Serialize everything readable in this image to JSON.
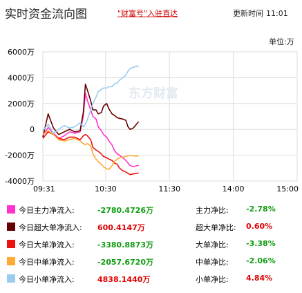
{
  "header": {
    "title": "实时资金流向图",
    "promo": "\"财富号\"入驻直达",
    "update_label": "更新时间",
    "update_time": "11:01"
  },
  "unit_label": "单位:万",
  "watermark": "东方财富",
  "chart_data": {
    "type": "line",
    "title": "实时资金流向图",
    "y_tick_labels": [
      "6000万",
      "4000万",
      "2000万",
      "0",
      "-2000万",
      "-4000万"
    ],
    "y_ticks": [
      6000,
      4000,
      2000,
      0,
      -2000,
      -4000
    ],
    "ylim": [
      -4000,
      6000
    ],
    "x_tick_labels": [
      "09:31",
      "10:30",
      "11:30",
      "14:00",
      "15:00"
    ],
    "x_ticks": [
      0,
      59,
      119,
      179,
      239
    ],
    "xlim": [
      0,
      239
    ],
    "grid": true,
    "x": [
      0,
      5,
      10,
      15,
      20,
      25,
      30,
      35,
      38,
      40,
      42,
      45,
      47,
      50,
      52,
      55,
      57,
      60,
      62,
      65,
      67,
      70,
      72,
      75,
      78,
      80,
      82,
      85,
      88,
      90
    ],
    "series": [
      {
        "name": "今日主力净流入",
        "color": "#ff33cc",
        "values": [
          -500,
          150,
          -300,
          -700,
          -500,
          -200,
          -300,
          -200,
          1000,
          2800,
          2200,
          1500,
          1000,
          800,
          200,
          -100,
          -400,
          -600,
          -900,
          -1200,
          -1600,
          -1900,
          -2000,
          -2200,
          -2400,
          -2600,
          -2800,
          -2900,
          -2820,
          -2780
        ]
      },
      {
        "name": "今日超大单净流入",
        "color": "#660000",
        "values": [
          -600,
          1200,
          100,
          -400,
          -200,
          0,
          -200,
          -100,
          1300,
          3500,
          3000,
          2200,
          1500,
          1500,
          1200,
          1300,
          1800,
          2000,
          1600,
          1200,
          1100,
          900,
          850,
          800,
          700,
          200,
          0,
          100,
          400,
          600
        ]
      },
      {
        "name": "今日大单净流入",
        "color": "#ee1111",
        "values": [
          -700,
          -200,
          -400,
          -700,
          -800,
          -600,
          -600,
          -800,
          -500,
          -400,
          -500,
          -800,
          -1400,
          -1600,
          -1700,
          -1900,
          -2100,
          -2200,
          -2300,
          -2400,
          -2600,
          -2700,
          -3000,
          -3200,
          -3300,
          -3400,
          -3500,
          -3450,
          -3400,
          -3380
        ]
      },
      {
        "name": "今日中单净流入",
        "color": "#ffaa33",
        "values": [
          -400,
          -100,
          -400,
          -800,
          -900,
          -800,
          -700,
          -900,
          -1100,
          -1200,
          -1100,
          -1300,
          -1900,
          -2300,
          -2500,
          -2700,
          -2900,
          -3050,
          -3100,
          -2800,
          -2500,
          -2300,
          -2200,
          -2150,
          -2100,
          -2050,
          -2000,
          -2050,
          -2070,
          -2058
        ]
      },
      {
        "name": "今日小单净流入",
        "color": "#99ccee",
        "values": [
          -100,
          400,
          -300,
          0,
          300,
          100,
          200,
          500,
          200,
          400,
          800,
          1500,
          2000,
          2500,
          2900,
          3100,
          3200,
          3200,
          3300,
          3300,
          3500,
          3600,
          3800,
          4000,
          4200,
          4500,
          4700,
          4800,
          4900,
          4838
        ]
      }
    ]
  },
  "legend": [
    {
      "label": "今日主力净流入:",
      "value": "-2780.4726万",
      "ratio_label": "主力净比:",
      "ratio": "-2.78%",
      "color": "#ff33cc",
      "sign": "neg"
    },
    {
      "label": "今日超大单净流入:",
      "value": "600.4147万",
      "ratio_label": "超大单净比:",
      "ratio": "0.60%",
      "color": "#660000",
      "sign": "pos"
    },
    {
      "label": "今日大单净流入:",
      "value": "-3380.8873万",
      "ratio_label": "大单净比:",
      "ratio": "-3.38%",
      "color": "#ee1111",
      "sign": "neg"
    },
    {
      "label": "今日中单净流入:",
      "value": "-2057.6720万",
      "ratio_label": "中单净比:",
      "ratio": "-2.06%",
      "color": "#ffaa33",
      "sign": "neg"
    },
    {
      "label": "今日小单净流入:",
      "value": "4838.1440万",
      "ratio_label": "小单净比:",
      "ratio": "4.84%",
      "color": "#99ccee",
      "sign": "pos"
    }
  ]
}
